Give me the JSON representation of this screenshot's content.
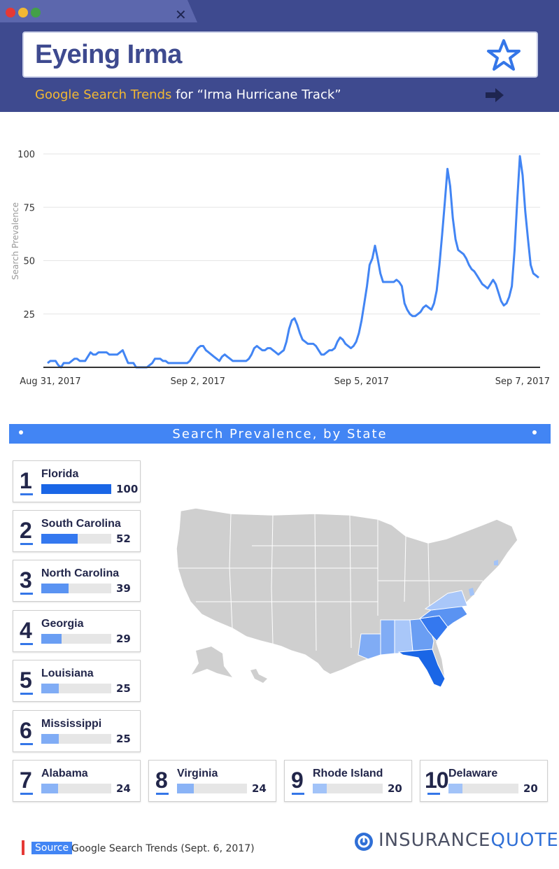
{
  "header": {
    "title": "Eyeing Irma",
    "subtitle_highlight": "Google Search Trends",
    "subtitle_rest": " for “Irma Hurricane Track”",
    "colors": {
      "bar": "#3e4a8f",
      "accent": "#f2b833",
      "star": "#3476e8"
    },
    "icons": [
      "close-icon",
      "star-icon",
      "arrow-right-icon"
    ]
  },
  "chart_data": {
    "type": "line",
    "title": "",
    "xlabel": "",
    "ylabel": "Search Prevalence",
    "ylim": [
      0,
      100
    ],
    "yticks": [
      25,
      50,
      75,
      100
    ],
    "xtick_labels": [
      "Aug 31, 2017",
      "Sep 2, 2017",
      "Sep 5, 2017",
      "Sep 7, 2017"
    ],
    "xtick_index": [
      0,
      56,
      117,
      168
    ],
    "grid": true,
    "color": "#4285f4",
    "series": [
      {
        "values": [
          2,
          3,
          3,
          3,
          1,
          0,
          2,
          2,
          2,
          3,
          4,
          4,
          3,
          3,
          3,
          5,
          7,
          6,
          6,
          7,
          7,
          7,
          7,
          6,
          6,
          6,
          6,
          7,
          8,
          5,
          2,
          2,
          2,
          0,
          0,
          0,
          0,
          0,
          1,
          2,
          4,
          4,
          4,
          3,
          3,
          2,
          2,
          2,
          2,
          2,
          2,
          2,
          2,
          3,
          5,
          7,
          9,
          10,
          10,
          8,
          7,
          6,
          5,
          4,
          3,
          5,
          6,
          5,
          4,
          3,
          3,
          3,
          3,
          3,
          3,
          4,
          6,
          9,
          10,
          9,
          8,
          8,
          9,
          9,
          8,
          7,
          6,
          7,
          8,
          12,
          18,
          22,
          23,
          20,
          16,
          13,
          12,
          11,
          11,
          11,
          10,
          8,
          6,
          6,
          7,
          8,
          8,
          9,
          12,
          14,
          13,
          11,
          10,
          9,
          10,
          12,
          16,
          22,
          30,
          38,
          48,
          51,
          57,
          51,
          44,
          40,
          40,
          40,
          40,
          40,
          41,
          40,
          38,
          30,
          27,
          25,
          24,
          24,
          25,
          26,
          28,
          29,
          28,
          27,
          30,
          36,
          48,
          62,
          77,
          93,
          85,
          70,
          60,
          55,
          54,
          53,
          51,
          48,
          46,
          45,
          43,
          41,
          39,
          38,
          37,
          39,
          41,
          39,
          35,
          31,
          29,
          30,
          33,
          38,
          55,
          78,
          99,
          90,
          73,
          60,
          48,
          44,
          43,
          42
        ]
      }
    ]
  },
  "states": {
    "heading": "Search Prevalence, by State",
    "items": [
      {
        "rank": "1",
        "name": "Florida",
        "value": "100",
        "pct": 100,
        "color": "#1a66e6"
      },
      {
        "rank": "2",
        "name": "South Carolina",
        "value": "52",
        "pct": 52,
        "color": "#3478ef"
      },
      {
        "rank": "3",
        "name": "North Carolina",
        "value": "39",
        "pct": 39,
        "color": "#5a93f2"
      },
      {
        "rank": "4",
        "name": "Georgia",
        "value": "29",
        "pct": 29,
        "color": "#6a9ef3"
      },
      {
        "rank": "5",
        "name": "Louisiana",
        "value": "25",
        "pct": 25,
        "color": "#80acf5"
      },
      {
        "rank": "6",
        "name": "Mississippi",
        "value": "25",
        "pct": 25,
        "color": "#80acf5"
      },
      {
        "rank": "7",
        "name": "Alabama",
        "value": "24",
        "pct": 24,
        "color": "#8ab3f6"
      },
      {
        "rank": "8",
        "name": "Virginia",
        "value": "24",
        "pct": 24,
        "color": "#8ab3f6"
      },
      {
        "rank": "9",
        "name": "Rhode Island",
        "value": "20",
        "pct": 20,
        "color": "#a2c3f8"
      },
      {
        "rank": "10",
        "name": "Delaware",
        "value": "20",
        "pct": 20,
        "color": "#a2c3f8"
      }
    ]
  },
  "footer": {
    "source_tag": "Source",
    "source_text": "Google Search Trends (Sept. 6, 2017)",
    "logo_left": "INSURANCE",
    "logo_right": "QUOTES",
    "logo_colors": {
      "left": "#4a4f63",
      "right": "#2f6fd6"
    }
  }
}
